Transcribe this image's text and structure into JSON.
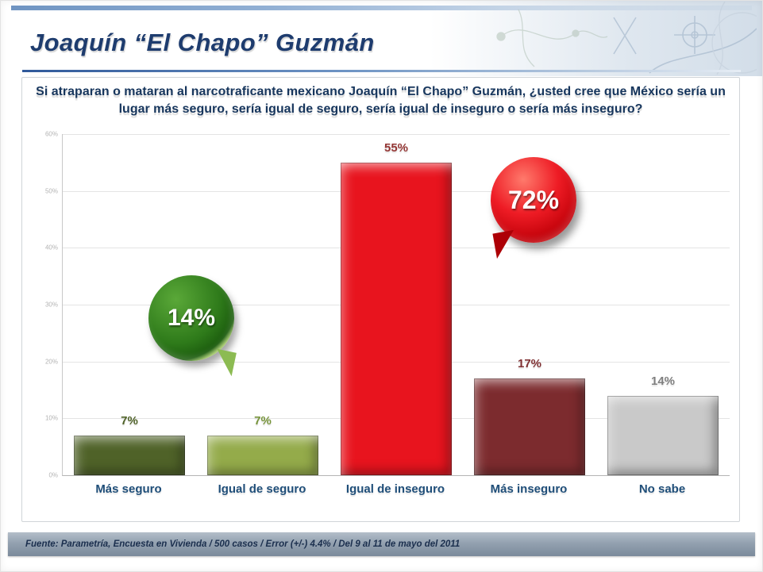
{
  "slide": {
    "title": "Joaquín “El Chapo” Guzmán",
    "question": "Si atraparan o mataran al narcotraficante mexicano Joaquín “El Chapo” Guzmán, ¿usted cree que México sería un lugar más seguro, sería igual de seguro, sería igual de inseguro o sería más inseguro?",
    "footer": "Fuente: Parametría, Encuesta en Vivienda / 500 casos / Error (+/-) 4.4% / Del 9 al 11 de mayo del 2011"
  },
  "chart_data": {
    "type": "bar",
    "categories": [
      "Más seguro",
      "Igual de seguro",
      "Igual de inseguro",
      "Más inseguro",
      "No sabe"
    ],
    "values": [
      7,
      7,
      55,
      17,
      14
    ],
    "value_labels": [
      "7%",
      "7%",
      "55%",
      "17%",
      "14%"
    ],
    "bar_colors": [
      "#4f6228",
      "#94ab4a",
      "#e8141e",
      "#7c2b2e",
      "#c9c9c9"
    ],
    "label_colors": [
      "#4f6228",
      "#77943b",
      "#943634",
      "#7f3133",
      "#7f7f7f"
    ],
    "ylim": [
      0,
      60
    ],
    "yticks": [
      "0%",
      "10%",
      "20%",
      "30%",
      "40%",
      "50%",
      "60%"
    ],
    "grid": true,
    "legend": "none",
    "callouts": [
      {
        "label": "14%",
        "color": "#2e7a1a",
        "refers_to": "Más seguro + Igual de seguro"
      },
      {
        "label": "72%",
        "color": "#ee1c25",
        "refers_to": "Igual de inseguro + Más inseguro"
      }
    ]
  }
}
